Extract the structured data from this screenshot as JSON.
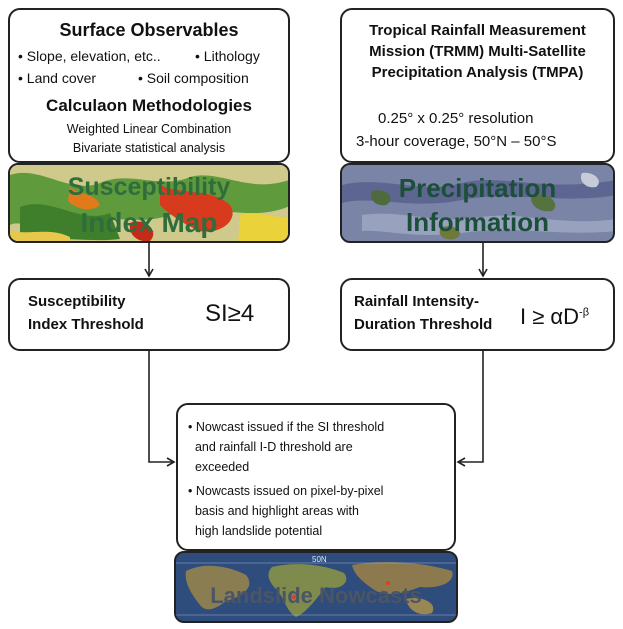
{
  "surface_box": {
    "title": "Surface Observables",
    "bullet_slope": "Slope, elevation, etc..",
    "bullet_lithology": "Lithology",
    "bullet_landcover": "Land cover",
    "bullet_soil": "Soil composition",
    "methods_title": "Calculaon Methodologies",
    "method_1a": "Weighted",
    "method_1b": "Linear Combination",
    "method_2": "Bivariate statistical analysis"
  },
  "susceptibility_map": {
    "line1": "Susceptibility",
    "line2": "Index Map"
  },
  "tmpa_box": {
    "line1": "Tropical Rainfall Measurement",
    "line2": "Mission (TRMM) Multi-Satellite",
    "line3": "Precipitation Analysis (TMPA)",
    "resolution": "0.25° x 0.25° resolution",
    "coverage": "3-hour coverage, 50°N – 50°S"
  },
  "precip_map": {
    "line1": "Precipitation",
    "line2": "Information"
  },
  "si_threshold": {
    "line1": "Susceptibility",
    "line2": "Index Threshold",
    "formula": "SI≥4"
  },
  "rain_threshold": {
    "line1": "Rainfall Intensity-",
    "line2": "Duration Threshold",
    "formula_main": "I ≥ αD",
    "formula_exp": "-β"
  },
  "nowcast_box": {
    "b1_l1": "Nowcast issued if the SI threshold",
    "b1_l2": "and rainfall I-D threshold are",
    "b1_l3": "exceeded",
    "b2_l1": "Nowcasts issued on pixel-by-pixel",
    "b2_l2": "basis and highlight areas with",
    "b2_l3": "high landslide potential"
  },
  "landslide_map": {
    "title": "Landslide Nowcasts",
    "lat_label": "50N"
  }
}
